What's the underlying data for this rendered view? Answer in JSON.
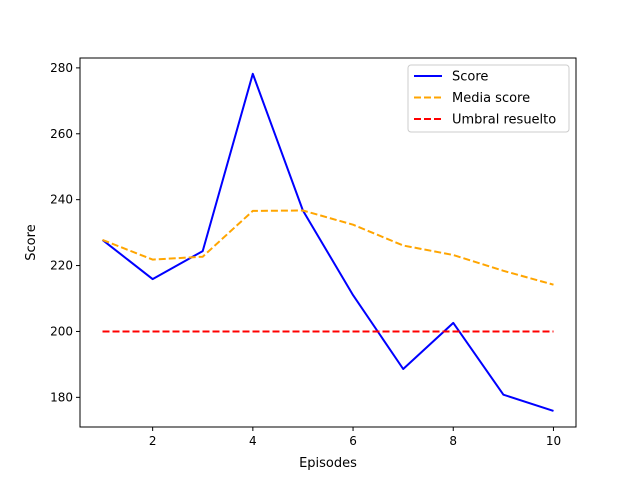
{
  "chart_data": {
    "type": "line",
    "xlabel": "Episodes",
    "ylabel": "Score",
    "xlim": [
      0.55,
      10.45
    ],
    "ylim": [
      171.0,
      283.0
    ],
    "x_ticks": [
      2,
      4,
      6,
      8,
      10
    ],
    "y_ticks": [
      180,
      200,
      220,
      240,
      260,
      280
    ],
    "x": [
      1,
      2,
      3,
      4,
      5,
      6,
      7,
      8,
      9,
      10
    ],
    "legend_position": "top-right",
    "grid": false,
    "series": [
      {
        "name": "Score",
        "color": "#0000ff",
        "style": "solid",
        "values": [
          227.8,
          215.9,
          224.4,
          278.2,
          236.7,
          211.0,
          188.6,
          202.6,
          180.8,
          175.9
        ]
      },
      {
        "name": "Media score",
        "color": "#ffa500",
        "style": "dashed",
        "values": [
          227.8,
          221.8,
          222.7,
          236.6,
          236.7,
          232.4,
          226.1,
          223.2,
          218.4,
          214.2
        ]
      },
      {
        "name": "Umbral resuelto",
        "color": "#ff0000",
        "style": "dashed",
        "values": [
          200,
          200,
          200,
          200,
          200,
          200,
          200,
          200,
          200,
          200
        ]
      }
    ]
  }
}
